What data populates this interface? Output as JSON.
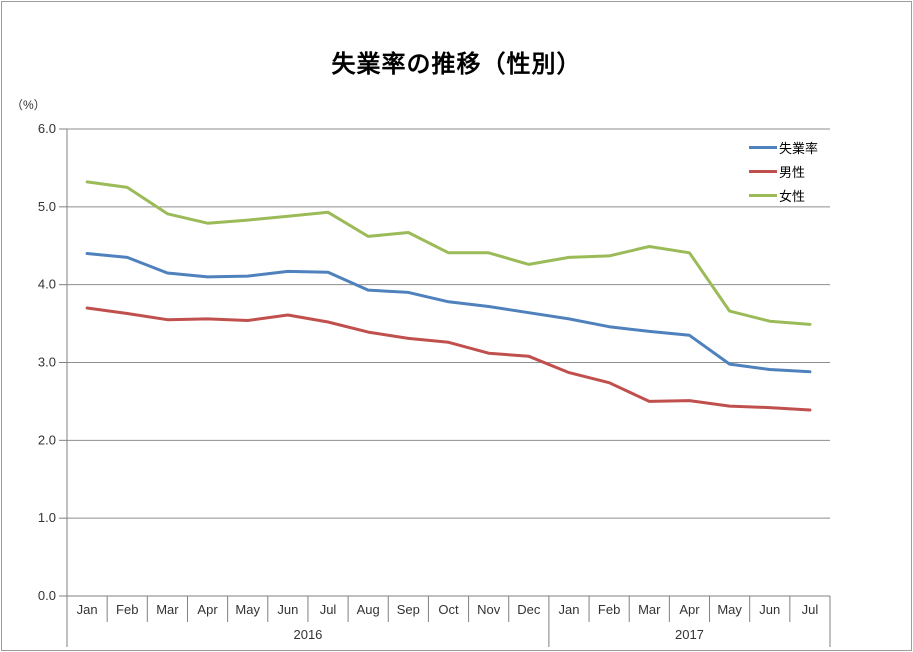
{
  "window": {
    "background": "#FFFFFF",
    "frame_border_color": "#9C9C9C"
  },
  "chart_data": {
    "type": "line",
    "title": "失業率の推移（性別）",
    "y_axis_unit_label": "（%）",
    "ylim": [
      0.0,
      6.0
    ],
    "ytick_labels": [
      "0.0",
      "1.0",
      "2.0",
      "3.0",
      "4.0",
      "5.0",
      "6.0"
    ],
    "grid": true,
    "legend_position": "top-right-inside",
    "categories": [
      "Jan",
      "Feb",
      "Mar",
      "Apr",
      "May",
      "Jun",
      "Jul",
      "Aug",
      "Sep",
      "Oct",
      "Nov",
      "Dec",
      "Jan",
      "Feb",
      "Mar",
      "Apr",
      "May",
      "Jun",
      "Jul"
    ],
    "year_groups": [
      {
        "label": "2016",
        "span": 12
      },
      {
        "label": "2017",
        "span": 7
      }
    ],
    "series": [
      {
        "name": "失業率",
        "color": "#4F81BD",
        "values": [
          4.4,
          4.35,
          4.15,
          4.1,
          4.11,
          4.17,
          4.16,
          3.93,
          3.9,
          3.78,
          3.72,
          3.64,
          3.56,
          3.46,
          3.4,
          3.35,
          2.98,
          2.91,
          2.88
        ]
      },
      {
        "name": "男性",
        "color": "#C0504D",
        "values": [
          3.7,
          3.63,
          3.55,
          3.56,
          3.54,
          3.61,
          3.52,
          3.39,
          3.31,
          3.26,
          3.12,
          3.08,
          2.87,
          2.74,
          2.5,
          2.51,
          2.44,
          2.42,
          2.39
        ]
      },
      {
        "name": "女性",
        "color": "#9BBB59",
        "values": [
          5.32,
          5.25,
          4.91,
          4.79,
          4.83,
          4.88,
          4.93,
          4.62,
          4.67,
          4.41,
          4.41,
          4.26,
          4.35,
          4.37,
          4.49,
          4.41,
          3.66,
          3.53,
          3.49
        ]
      }
    ],
    "style": {
      "gridline_color": "#8E8E8E",
      "axis_color": "#808080",
      "label_color": "#333333",
      "line_width": 3
    }
  }
}
